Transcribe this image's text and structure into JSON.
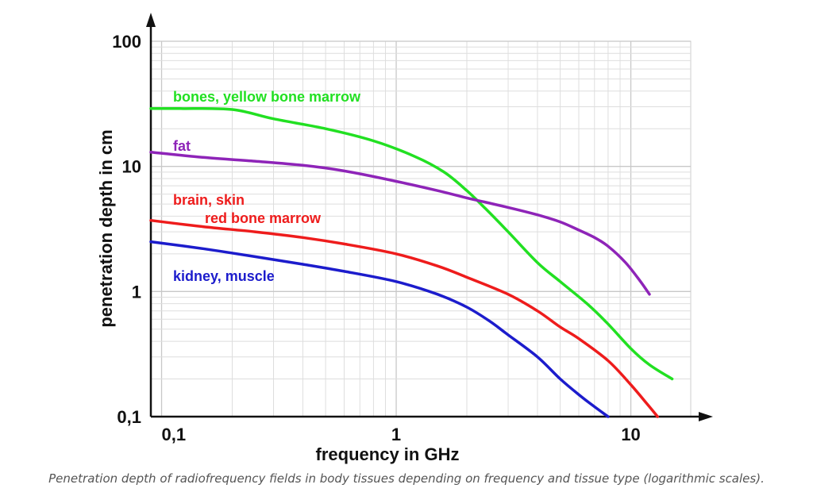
{
  "chart_data": {
    "type": "line",
    "xscale": "log",
    "yscale": "log",
    "xlim": [
      0.09,
      18
    ],
    "ylim": [
      0.1,
      100
    ],
    "grid": true,
    "xlabel": "frequency in GHz",
    "ylabel": "penetration depth in cm",
    "x_ticks": [
      {
        "value": 0.1,
        "label": "0,1"
      },
      {
        "value": 1,
        "label": "1"
      },
      {
        "value": 10,
        "label": "10"
      }
    ],
    "y_ticks": [
      {
        "value": 0.1,
        "label": "0,1"
      },
      {
        "value": 1,
        "label": "1"
      },
      {
        "value": 10,
        "label": "10"
      },
      {
        "value": 100,
        "label": "100"
      }
    ],
    "series": [
      {
        "name": "bones, yellow bone marrow",
        "color": "#22e022",
        "x": [
          0.09,
          0.12,
          0.2,
          0.3,
          0.5,
          0.8,
          1.2,
          1.6,
          2.0,
          2.4,
          3.0,
          4.0,
          5.0,
          6.5,
          8.0,
          10.0,
          12.0,
          15.0
        ],
        "y": [
          29,
          29,
          28.5,
          24,
          20,
          16,
          12,
          9,
          6.4,
          4.6,
          3.0,
          1.7,
          1.2,
          0.8,
          0.55,
          0.35,
          0.26,
          0.2
        ]
      },
      {
        "name": "fat",
        "color": "#8e24b8",
        "x": [
          0.09,
          0.15,
          0.25,
          0.4,
          0.6,
          1.0,
          1.5,
          2.0,
          3.0,
          4.0,
          5.0,
          6.0,
          7.0,
          8.0,
          9.5,
          11.0,
          12.0
        ],
        "y": [
          13,
          11.8,
          11,
          10.2,
          9.2,
          7.6,
          6.4,
          5.6,
          4.7,
          4.1,
          3.6,
          3.1,
          2.7,
          2.3,
          1.7,
          1.2,
          0.95
        ]
      },
      {
        "name": "brain, skin",
        "label_line2": "red bone marrow",
        "color": "#ee1c1c",
        "x": [
          0.09,
          0.15,
          0.25,
          0.4,
          0.6,
          1.0,
          1.5,
          2.0,
          3.0,
          4.0,
          5.0,
          6.0,
          8.0,
          10.0,
          12.0,
          13.0
        ],
        "y": [
          3.7,
          3.3,
          3.0,
          2.7,
          2.4,
          2.0,
          1.6,
          1.3,
          0.95,
          0.7,
          0.52,
          0.42,
          0.28,
          0.18,
          0.12,
          0.1
        ]
      },
      {
        "name": "kidney, muscle",
        "color": "#1c1ccc",
        "x": [
          0.09,
          0.15,
          0.25,
          0.4,
          0.6,
          1.0,
          1.5,
          2.0,
          2.5,
          3.0,
          4.0,
          5.0,
          6.0,
          7.0,
          8.0
        ],
        "y": [
          2.5,
          2.2,
          1.9,
          1.65,
          1.45,
          1.2,
          0.95,
          0.75,
          0.58,
          0.45,
          0.3,
          0.2,
          0.15,
          0.12,
          0.1
        ]
      }
    ]
  },
  "caption": "Penetration depth of radiofrequency fields in body tissues depending on frequency and tissue type (logarithmic scales)."
}
